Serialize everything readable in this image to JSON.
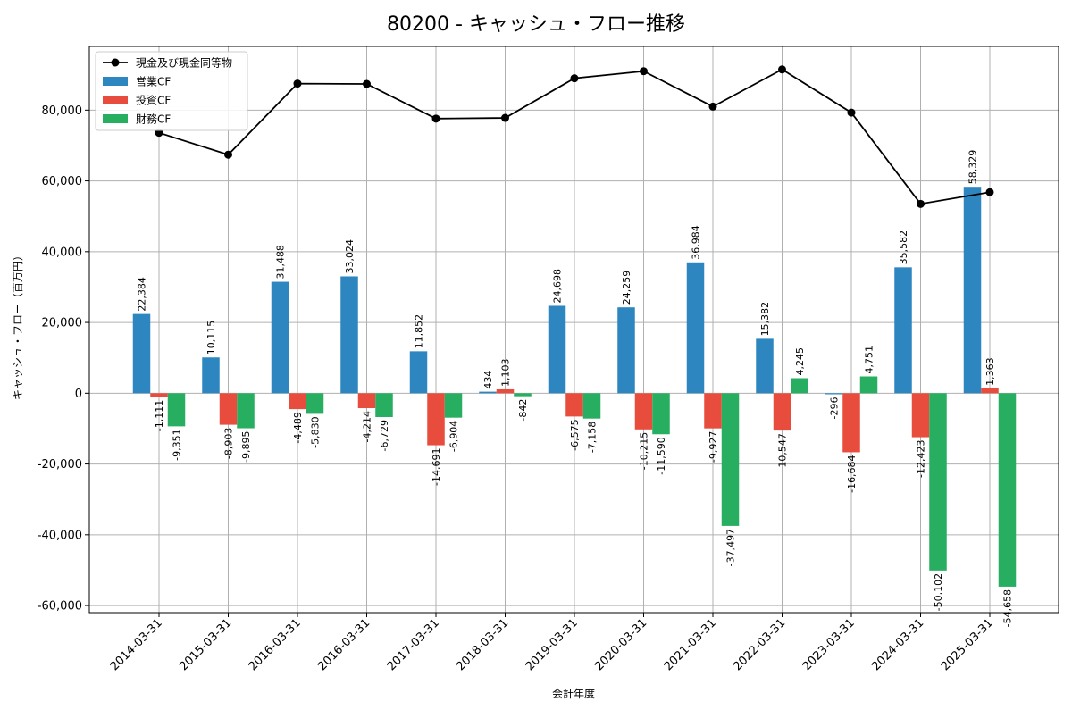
{
  "chart_data": {
    "type": "bar",
    "title": "80200 - キャッシュ・フロー推移",
    "xlabel": "会計年度",
    "ylabel": "キャッシュ・フロー（百万円）",
    "categories": [
      "2014-03-31",
      "2015-03-31",
      "2016-03-31",
      "2016-03-31",
      "2017-03-31",
      "2018-03-31",
      "2019-03-31",
      "2020-03-31",
      "2021-03-31",
      "2022-03-31",
      "2023-03-31",
      "2024-03-31",
      "2025-03-31"
    ],
    "ylim": [
      -62000,
      98000
    ],
    "yticks": [
      -60000,
      -40000,
      -20000,
      0,
      20000,
      40000,
      60000,
      80000
    ],
    "ytick_labels": [
      "-60,000",
      "-40,000",
      "-20,000",
      "0",
      "20,000",
      "40,000",
      "60,000",
      "80,000"
    ],
    "grid": true,
    "legend_position": "top-left",
    "series": [
      {
        "name": "営業CF",
        "kind": "bar",
        "color": "#2e86c1",
        "values": [
          22384,
          10115,
          31488,
          33024,
          11852,
          434,
          24698,
          24259,
          36984,
          15382,
          -296,
          35582,
          58329
        ],
        "labels": [
          "22,384",
          "10,115",
          "31,488",
          "33,024",
          "11,852",
          "434",
          "24,698",
          "24,259",
          "36,984",
          "15,382",
          "-296",
          "35,582",
          "58,329"
        ]
      },
      {
        "name": "投資CF",
        "kind": "bar",
        "color": "#e74c3c",
        "values": [
          -1111,
          -8903,
          -4489,
          -4214,
          -14691,
          1103,
          -6575,
          -10215,
          -9927,
          -10547,
          -16684,
          -12423,
          1363
        ],
        "labels": [
          "-1,111",
          "-8,903",
          "-4,489",
          "-4,214",
          "-14,691",
          "1,103",
          "-6,575",
          "-10,215",
          "-9,927",
          "-10,547",
          "-16,684",
          "-12,423",
          "1,363"
        ]
      },
      {
        "name": "財務CF",
        "kind": "bar",
        "color": "#27ae60",
        "values": [
          -9351,
          -9895,
          -5830,
          -6729,
          -6904,
          -842,
          -7158,
          -11590,
          -37497,
          4245,
          4751,
          -50102,
          -54658
        ],
        "labels": [
          "-9,351",
          "-9,895",
          "-5,830",
          "-6,729",
          "-6,904",
          "-842",
          "-7,158",
          "-11,590",
          "-37,497",
          "4,245",
          "4,751",
          "-50,102",
          "-54,658"
        ]
      },
      {
        "name": "現金及び現金同等物",
        "kind": "line",
        "color": "#000000",
        "values": [
          73600,
          67400,
          87500,
          87400,
          77600,
          77800,
          89000,
          91000,
          81000,
          91500,
          79300,
          53500,
          56800
        ]
      }
    ]
  }
}
